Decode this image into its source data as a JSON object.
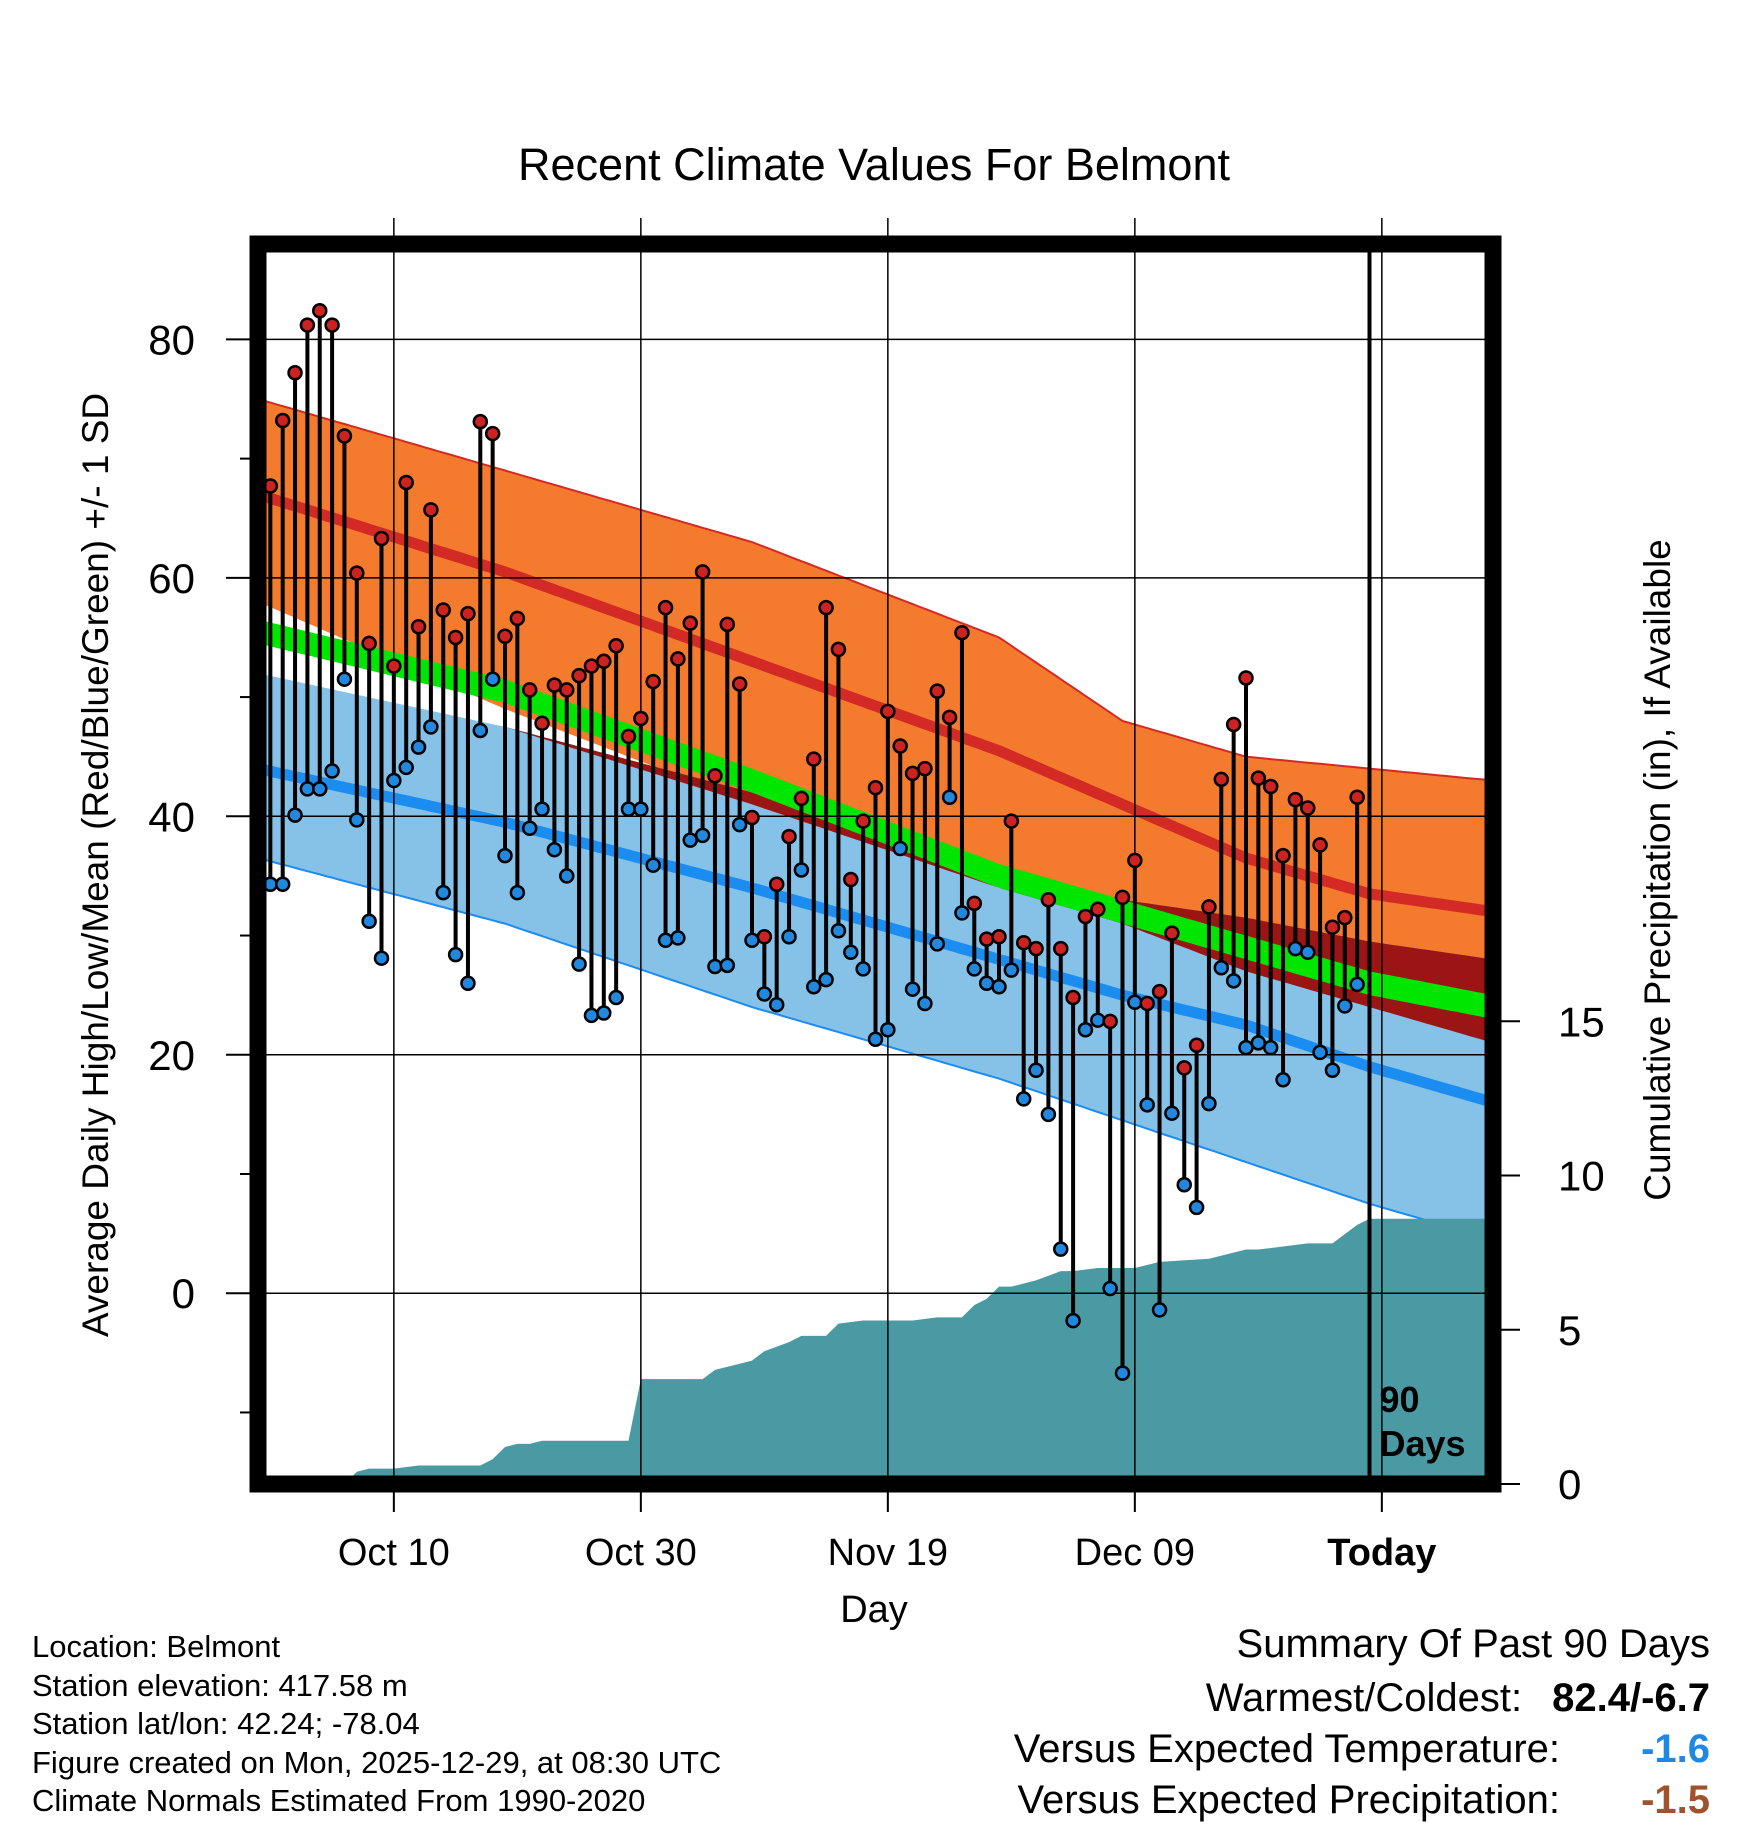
{
  "chart_data": {
    "type": "line",
    "title": "Recent Climate Values For Belmont",
    "xlabel": "Day",
    "ylabel": "Average Daily High/Low/Mean (Red/Blue/Green) +/- 1 SD",
    "y2label": "Cumulative Precipitation (in), If Available",
    "ylim": [
      -16,
      88
    ],
    "y2lim": [
      0,
      40
    ],
    "xlim": [
      1,
      101
    ],
    "today_day": 91,
    "today_label": "90 Days",
    "x_ticks": [
      {
        "day": 12,
        "label": "Oct 10"
      },
      {
        "day": 32,
        "label": "Oct 30"
      },
      {
        "day": 52,
        "label": "Nov 19"
      },
      {
        "day": 72,
        "label": "Dec 09"
      },
      {
        "day": 92,
        "label": "Today"
      }
    ],
    "y_ticks": [
      0,
      20,
      40,
      60,
      80
    ],
    "y2_ticks": [
      0,
      5,
      10,
      15
    ],
    "normals": {
      "x": [
        1,
        21,
        41,
        61,
        71,
        81,
        91,
        101
      ],
      "high_mean": [
        67,
        60.5,
        53,
        45.5,
        41,
        36.5,
        33.5,
        32
      ],
      "high_sd_upper": [
        75,
        69,
        63,
        55,
        48,
        45,
        44,
        43
      ],
      "high_sd_lower": [
        58,
        49,
        41,
        34,
        31,
        27,
        24,
        21
      ],
      "low_mean": [
        44,
        39.5,
        34,
        28,
        25,
        22.5,
        19,
        16
      ],
      "low_sd_upper": [
        52,
        47.5,
        42,
        34,
        33,
        31.5,
        29.5,
        28
      ],
      "low_sd_lower": [
        36.5,
        31,
        24,
        18,
        14.5,
        11,
        7.5,
        4.5
      ],
      "avg_mean": [
        55.5,
        50.5,
        43,
        35,
        32,
        29,
        26,
        24
      ]
    },
    "highs": [
      77.2,
      67.7,
      73.2,
      77.2,
      81.2,
      82.4,
      81.2,
      71.9,
      60.4,
      54.5,
      63.3,
      52.6,
      68,
      55.9,
      65.7,
      57.3,
      55,
      57,
      73.1,
      72.1,
      55.1,
      56.6,
      50.6,
      47.8,
      51,
      50.6,
      51.8,
      52.6,
      53,
      54.3,
      46.7,
      48.2,
      51.3,
      57.5,
      53.2,
      56.2,
      60.5,
      43.4,
      56.1,
      51.1,
      39.9,
      29.9,
      34.3,
      38.3,
      41.5,
      44.8,
      57.5,
      54,
      34.7,
      39.6,
      42.4,
      48.8,
      45.9,
      43.6,
      44,
      50.5,
      48.3,
      55.4,
      32.7,
      29.7,
      29.9,
      39.6,
      29.4,
      28.9,
      33,
      28.9,
      24.8,
      31.6,
      32.2,
      22.8,
      33.2,
      36.3,
      24.3,
      25.3,
      30.2,
      18.9,
      20.8,
      32.4,
      43.1,
      47.7,
      51.6,
      43.2,
      42.5,
      36.7,
      41.4,
      40.7,
      37.6,
      30.7,
      31.5,
      41.6
    ],
    "lows": [
      41,
      34.3,
      34.3,
      40.1,
      42.3,
      42.3,
      43.8,
      51.5,
      39.7,
      31.2,
      28.1,
      43,
      44.1,
      45.8,
      47.5,
      33.6,
      28.4,
      26,
      47.2,
      51.5,
      36.7,
      33.6,
      39,
      40.6,
      37.2,
      35,
      27.6,
      23.3,
      23.5,
      24.8,
      40.6,
      40.6,
      35.9,
      29.6,
      29.8,
      38,
      38.4,
      27.4,
      27.5,
      39.3,
      29.6,
      25.1,
      24.2,
      29.9,
      35.5,
      25.7,
      26.3,
      30.4,
      28.6,
      27.2,
      21.3,
      22.1,
      37.3,
      25.5,
      24.3,
      29.3,
      41.6,
      31.9,
      27.2,
      26,
      25.7,
      27.1,
      16.3,
      18.7,
      15,
      3.7,
      -2.3,
      22.1,
      22.9,
      0.4,
      -6.7,
      24.4,
      15.8,
      -1.4,
      15.1,
      9.1,
      7.2,
      15.9,
      27.3,
      26.2,
      20.6,
      21,
      20.6,
      17.9,
      28.9,
      28.6,
      20.2,
      18.7,
      24.1,
      25.9
    ],
    "precip": {
      "x": [
        1,
        8,
        9,
        10,
        12,
        14,
        16,
        18,
        19,
        20,
        21,
        22,
        23,
        24,
        26,
        28,
        31,
        32,
        33,
        35,
        37,
        38,
        40,
        41,
        42,
        44,
        45,
        47,
        48,
        50,
        52,
        54,
        56,
        58,
        59,
        60,
        61,
        62,
        64,
        66,
        67,
        69,
        72,
        74,
        78,
        81,
        82,
        84,
        86,
        88,
        89,
        90,
        91,
        101
      ],
      "y": [
        0,
        0,
        0.4,
        0.5,
        0.5,
        0.6,
        0.6,
        0.6,
        0.6,
        0.8,
        1.2,
        1.3,
        1.3,
        1.4,
        1.4,
        1.4,
        1.4,
        3.4,
        3.4,
        3.4,
        3.4,
        3.7,
        3.9,
        4,
        4.3,
        4.6,
        4.8,
        4.8,
        5.2,
        5.3,
        5.3,
        5.3,
        5.4,
        5.4,
        5.8,
        6,
        6.4,
        6.4,
        6.6,
        6.9,
        6.9,
        7,
        7,
        7.2,
        7.3,
        7.6,
        7.6,
        7.7,
        7.8,
        7.8,
        8.1,
        8.4,
        8.6,
        8.6
      ]
    }
  },
  "info": {
    "location": "Location: Belmont",
    "elevation": "Station elevation: 417.58 m",
    "latlon": "Station lat/lon: 42.24; -78.04",
    "created": "Figure created on Mon, 2025-12-29, at 08:30 UTC",
    "normals": "Climate Normals Estimated From 1990-2020"
  },
  "summary": {
    "title": "Summary Of Past 90 Days",
    "warm_cold_label": "Warmest/Coldest:",
    "warm_cold_value": "82.4/-6.7",
    "temp_label": "Versus Expected Temperature:",
    "temp_value": "-1.6",
    "precip_label": "Versus Expected Precipitation:",
    "precip_value": "-1.5"
  },
  "colors": {
    "high_band": "#f47a2e",
    "high_line": "#d42a26",
    "low_band": "#86c2e8",
    "low_line": "#1b8cf0",
    "mean_band": "#00e600",
    "overlap_band": "#9b1515",
    "precip_fill": "#4a9aa3",
    "dot_high": "#cc2222",
    "dot_low": "#2288dd",
    "temp_value": "#1e88e5",
    "precip_value": "#a0522d"
  }
}
